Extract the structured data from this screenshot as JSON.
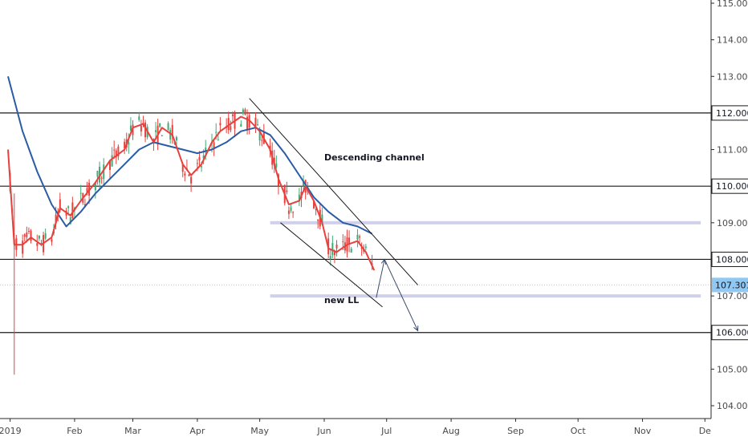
{
  "chart_data": {
    "type": "candlestick",
    "symbol_view": "daily price chart with moving averages",
    "x_ticks": [
      "2019",
      "Feb",
      "Mar",
      "Apr",
      "May",
      "Jun",
      "Jul",
      "Aug",
      "Sep",
      "Oct",
      "Nov",
      "De"
    ],
    "y_ticks": [
      "104.000",
      "105.000",
      "106.000",
      "107.000",
      "108.000",
      "109.000",
      "110.000",
      "111.000",
      "112.000",
      "113.000",
      "114.000",
      "115.000"
    ],
    "ylim": [
      103.6,
      115.05
    ],
    "current_price": "107.301",
    "horizontal_levels": [
      {
        "label": "112.000",
        "value": 112.0
      },
      {
        "label": "110.000",
        "value": 110.0
      },
      {
        "label": "108.000",
        "value": 108.0
      },
      {
        "label": "106.000",
        "value": 106.0
      }
    ],
    "zones": [
      {
        "value": 109.0,
        "from": "2019-05-06",
        "to": "2019-11-29"
      },
      {
        "value": 107.0,
        "from": "2019-05-06",
        "to": "2019-11-29"
      }
    ],
    "annotations": [
      {
        "text": "Descending channel",
        "at": [
          "2019-06-01",
          110.7
        ]
      },
      {
        "text": "new LL",
        "at": [
          "2019-06-01",
          106.8
        ]
      }
    ],
    "channel_lines": [
      {
        "from": [
          "2019-04-26",
          112.4
        ],
        "to": [
          "2019-07-16",
          107.3
        ]
      },
      {
        "from": [
          "2019-05-11",
          109.0
        ],
        "to": [
          "2019-06-29",
          106.7
        ]
      }
    ],
    "projection_path": [
      [
        "2019-06-26",
        106.95
      ],
      [
        "2019-06-30",
        108.0
      ],
      [
        "2019-07-16",
        106.05
      ]
    ],
    "ma_fast_color": "#e8403d",
    "ma_slow_color": "#2a5ca6",
    "candle_up_color": "#3dab77",
    "candle_down_color": "#e8403d",
    "current_price_color": "#8fc8f2",
    "zone_color": "#d0d0ea",
    "ma_fast": [
      [
        "2018-12-31",
        111.0
      ],
      [
        "2019-01-03",
        108.4
      ],
      [
        "2019-01-07",
        108.4
      ],
      [
        "2019-01-11",
        108.6
      ],
      [
        "2019-01-16",
        108.4
      ],
      [
        "2019-01-21",
        108.6
      ],
      [
        "2019-01-25",
        109.4
      ],
      [
        "2019-01-30",
        109.2
      ],
      [
        "2019-02-04",
        109.6
      ],
      [
        "2019-02-11",
        110.1
      ],
      [
        "2019-02-18",
        110.7
      ],
      [
        "2019-02-25",
        111.0
      ],
      [
        "2019-03-01",
        111.6
      ],
      [
        "2019-03-06",
        111.7
      ],
      [
        "2019-03-11",
        111.2
      ],
      [
        "2019-03-15",
        111.6
      ],
      [
        "2019-03-20",
        111.4
      ],
      [
        "2019-03-25",
        110.6
      ],
      [
        "2019-03-29",
        110.3
      ],
      [
        "2019-04-03",
        110.6
      ],
      [
        "2019-04-08",
        111.2
      ],
      [
        "2019-04-12",
        111.5
      ],
      [
        "2019-04-17",
        111.7
      ],
      [
        "2019-04-22",
        111.9
      ],
      [
        "2019-04-26",
        111.8
      ],
      [
        "2019-05-01",
        111.5
      ],
      [
        "2019-05-06",
        111.0
      ],
      [
        "2019-05-10",
        110.2
      ],
      [
        "2019-05-15",
        109.5
      ],
      [
        "2019-05-20",
        109.6
      ],
      [
        "2019-05-23",
        110.0
      ],
      [
        "2019-05-27",
        109.6
      ],
      [
        "2019-05-31",
        109.0
      ],
      [
        "2019-06-03",
        108.3
      ],
      [
        "2019-06-07",
        108.2
      ],
      [
        "2019-06-12",
        108.4
      ],
      [
        "2019-06-17",
        108.5
      ],
      [
        "2019-06-21",
        108.2
      ],
      [
        "2019-06-25",
        107.7
      ]
    ],
    "ma_slow": [
      [
        "2018-12-31",
        113.0
      ],
      [
        "2019-01-07",
        111.5
      ],
      [
        "2019-01-14",
        110.4
      ],
      [
        "2019-01-21",
        109.5
      ],
      [
        "2019-01-28",
        108.9
      ],
      [
        "2019-02-04",
        109.3
      ],
      [
        "2019-02-11",
        109.8
      ],
      [
        "2019-02-18",
        110.2
      ],
      [
        "2019-02-25",
        110.6
      ],
      [
        "2019-03-04",
        111.0
      ],
      [
        "2019-03-11",
        111.2
      ],
      [
        "2019-03-18",
        111.1
      ],
      [
        "2019-03-25",
        111.0
      ],
      [
        "2019-04-01",
        110.9
      ],
      [
        "2019-04-08",
        111.0
      ],
      [
        "2019-04-15",
        111.2
      ],
      [
        "2019-04-22",
        111.5
      ],
      [
        "2019-04-29",
        111.6
      ],
      [
        "2019-05-06",
        111.4
      ],
      [
        "2019-05-13",
        110.9
      ],
      [
        "2019-05-20",
        110.3
      ],
      [
        "2019-05-27",
        109.7
      ],
      [
        "2019-06-03",
        109.3
      ],
      [
        "2019-06-10",
        109.0
      ],
      [
        "2019-06-17",
        108.9
      ],
      [
        "2019-06-24",
        108.7
      ]
    ]
  }
}
